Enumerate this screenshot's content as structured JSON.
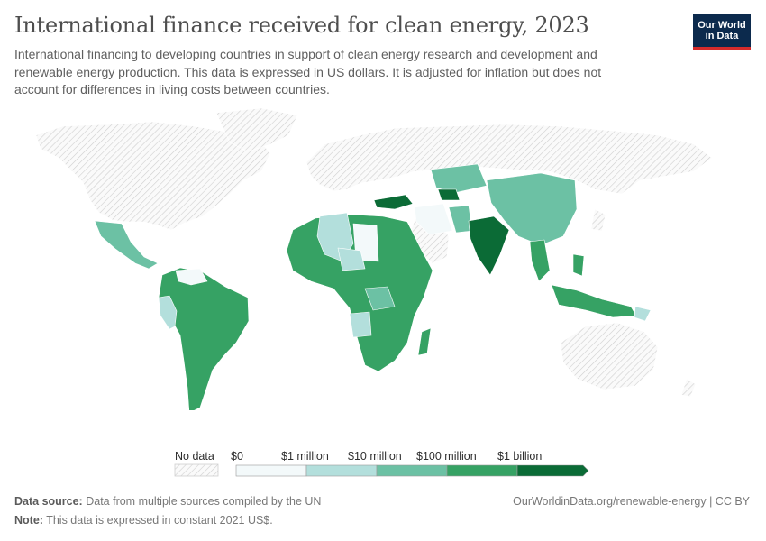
{
  "header": {
    "title": "International finance received for clean energy, 2023",
    "subtitle": "International financing to developing countries in support of clean energy research and development and renewable energy production. This data is expressed in US dollars. It is adjusted for inflation but does not account for differences in living costs between countries.",
    "logo_line1": "Our World",
    "logo_line2": "in Data"
  },
  "legend": {
    "no_data_label": "No data",
    "bins": [
      {
        "label": "$0",
        "color": "#f3f9fa"
      },
      {
        "label": "$1 million",
        "color": "#b3dfdc"
      },
      {
        "label": "$10 million",
        "color": "#6cc1a4"
      },
      {
        "label": "$100 million",
        "color": "#36a264"
      },
      {
        "label": "$1 billion",
        "color": "#0b6b36"
      }
    ]
  },
  "chart_data": {
    "type": "choropleth",
    "year": 2023,
    "unit": "constant 2021 US$",
    "bins": [
      "$0",
      "$1 million",
      "$10 million",
      "$100 million",
      "$1 billion"
    ],
    "approx_bins_by_region": [
      {
        "region": "Turkey",
        "bin": "> $1 billion"
      },
      {
        "region": "India",
        "bin": "> $1 billion"
      },
      {
        "region": "Uzbekistan",
        "bin": "> $1 billion"
      },
      {
        "region": "Brazil",
        "bin": "$100 million - $1 billion"
      },
      {
        "region": "South America (most)",
        "bin": "$100 million - $1 billion"
      },
      {
        "region": "Egypt",
        "bin": "$100 million - $1 billion"
      },
      {
        "region": "Morocco",
        "bin": "$100 million - $1 billion"
      },
      {
        "region": "Ukraine",
        "bin": "$100 million - $1 billion"
      },
      {
        "region": "Kenya",
        "bin": "$100 million - $1 billion"
      },
      {
        "region": "South Africa",
        "bin": "$100 million - $1 billion"
      },
      {
        "region": "Indonesia",
        "bin": "$100 million - $1 billion"
      },
      {
        "region": "Philippines",
        "bin": "$100 million - $1 billion"
      },
      {
        "region": "Vietnam",
        "bin": "$100 million - $1 billion"
      },
      {
        "region": "Madagascar",
        "bin": "$100 million - $1 billion"
      },
      {
        "region": "China",
        "bin": "$10 million - $100 million"
      },
      {
        "region": "Kazakhstan",
        "bin": "$10 million - $100 million"
      },
      {
        "region": "Mongolia",
        "bin": "$10 million - $100 million"
      },
      {
        "region": "Mexico",
        "bin": "$10 million - $100 million"
      },
      {
        "region": "Central Africa",
        "bin": "$10 million - $100 million"
      },
      {
        "region": "Peru",
        "bin": "$1 million - $10 million"
      },
      {
        "region": "Algeria",
        "bin": "$1 million - $10 million"
      },
      {
        "region": "Niger",
        "bin": "$1 million - $10 million"
      },
      {
        "region": "Angola",
        "bin": "$1 million - $10 million"
      },
      {
        "region": "Iran",
        "bin": "$0 - $1 million"
      },
      {
        "region": "Libya",
        "bin": "$0 - $1 million"
      },
      {
        "region": "Venezuela",
        "bin": "$0 - $1 million"
      },
      {
        "region": "North America, Europe, Russia, Australia, Japan, Saudi Arabia",
        "bin": "No data"
      }
    ]
  },
  "footer": {
    "source_label": "Data source:",
    "source_text": "Data from multiple sources compiled by the UN",
    "note_label": "Note:",
    "note_text": "This data is expressed in constant 2021 US$.",
    "url_text": "OurWorldinData.org/renewable-energy | CC BY"
  }
}
